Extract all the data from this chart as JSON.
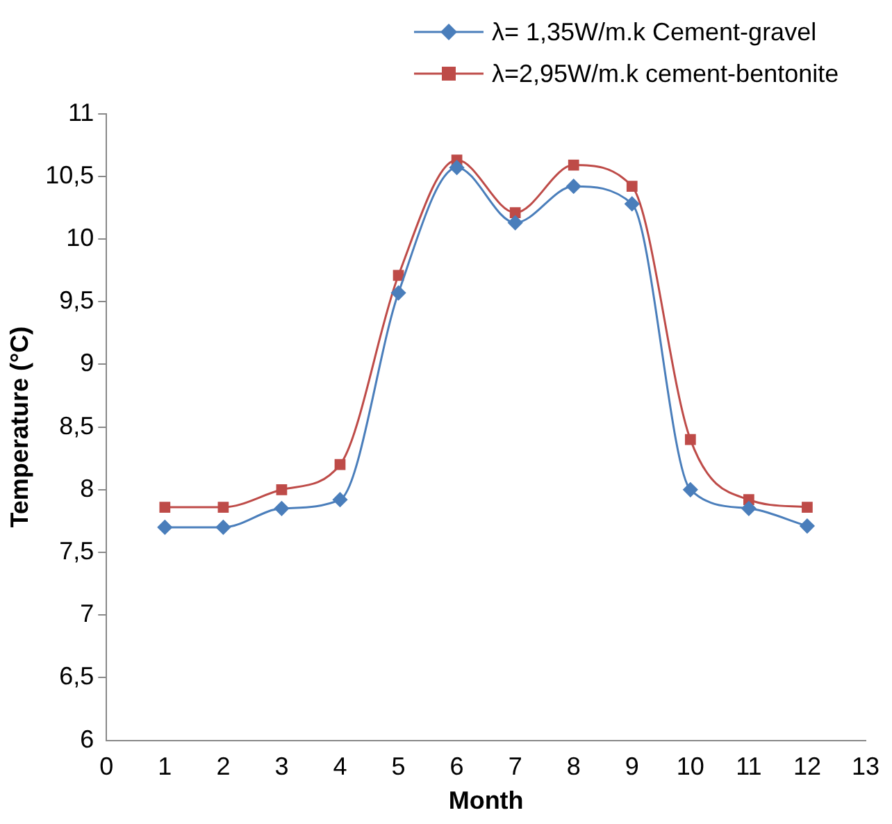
{
  "chart_data": {
    "type": "line",
    "xlabel": "Month",
    "ylabel": "Temperature (°C)",
    "xlim": [
      0,
      13
    ],
    "xticks": [
      0,
      1,
      2,
      3,
      4,
      5,
      6,
      7,
      8,
      9,
      10,
      11,
      12,
      13
    ],
    "ylim": [
      6,
      11
    ],
    "yticks": [
      6,
      {
        "value": 6.5,
        "label": "6,5"
      },
      7,
      {
        "value": 7.5,
        "label": "7,5"
      },
      8,
      {
        "value": 8.5,
        "label": "8,5"
      },
      9,
      {
        "value": 9.5,
        "label": "9,5"
      },
      10,
      {
        "value": 10.5,
        "label": "10,5"
      },
      11
    ],
    "x": [
      1,
      2,
      3,
      4,
      5,
      6,
      7,
      8,
      9,
      10,
      11,
      12
    ],
    "series": [
      {
        "name": "λ= 1,35W/m.k Cement-gravel",
        "color": "#4a7ebb",
        "marker": "diamond",
        "values": [
          7.7,
          7.7,
          7.85,
          7.92,
          9.57,
          10.57,
          10.13,
          10.42,
          10.28,
          8.0,
          7.85,
          7.71
        ]
      },
      {
        "name": "λ=2,95W/m.k cement-bentonite",
        "color": "#be4b48",
        "marker": "square",
        "values": [
          7.86,
          7.86,
          8.0,
          8.2,
          9.71,
          10.63,
          10.21,
          10.59,
          10.42,
          8.4,
          7.92,
          7.86
        ]
      }
    ],
    "grid": false,
    "legend": "top right",
    "line_style": "solid"
  }
}
